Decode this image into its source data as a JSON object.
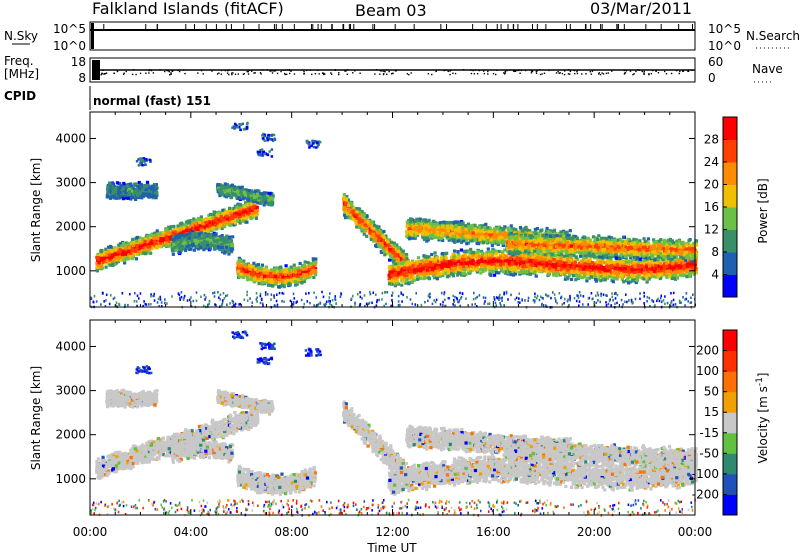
{
  "header": {
    "station": "Falkland Islands (fitACF)",
    "beam": "Beam 03",
    "date": "03/Mar/2011"
  },
  "top_panels": {
    "nsky_label": "N.Sky",
    "nsky_ticks": [
      "10^5",
      "10^0"
    ],
    "nsearch_label": "N.Search",
    "nsearch_ticks": [
      "10^5",
      "10^0"
    ],
    "freq_label_1": "Freq.",
    "freq_label_2": "[MHz]",
    "freq_ticks": [
      "18",
      "8"
    ],
    "nave_label": "Nave",
    "nave_ticks": [
      "60",
      "0"
    ],
    "cpid_label": "CPID",
    "cpid_text": "normal (fast) 151"
  },
  "chart_data": [
    {
      "type": "heatmap",
      "name": "power-panel",
      "ylabel": "Slant Range [km]",
      "xlabel": "",
      "x_ticks": [
        "00:00",
        "04:00",
        "08:00",
        "12:00",
        "16:00",
        "20:00",
        "00:00"
      ],
      "y_ticks": [
        1000,
        2000,
        3000,
        4000
      ],
      "ylim": [
        180,
        4600
      ],
      "xlim_hours": [
        0,
        24
      ],
      "colorbar": {
        "label": "Power [dB]",
        "ticks": [
          "28",
          "24",
          "20",
          "16",
          "12",
          "8",
          "4"
        ],
        "colors": [
          "#0000ff",
          "#2060b0",
          "#3a8f6a",
          "#6cc048",
          "#f0c000",
          "#ff8c00",
          "#ff4000",
          "#ff0000"
        ]
      }
    },
    {
      "type": "heatmap",
      "name": "velocity-panel",
      "ylabel": "Slant Range [km]",
      "xlabel": "Time UT",
      "x_ticks": [
        "00:00",
        "04:00",
        "08:00",
        "12:00",
        "16:00",
        "20:00",
        "00:00"
      ],
      "y_ticks": [
        1000,
        2000,
        3000,
        4000
      ],
      "ylim": [
        180,
        4600
      ],
      "xlim_hours": [
        0,
        24
      ],
      "colorbar": {
        "label": "Velocity [m s",
        "label_sup": "-1",
        "label_end": "]",
        "ticks": [
          "200",
          "100",
          "50",
          "15",
          "-15",
          "-50",
          "-100",
          "-200"
        ],
        "colors": [
          "#0000ff",
          "#2050b8",
          "#2e8a6e",
          "#60c040",
          "#c8c8c8",
          "#f0a000",
          "#ff7000",
          "#ff3000",
          "#ff0000"
        ]
      }
    }
  ]
}
